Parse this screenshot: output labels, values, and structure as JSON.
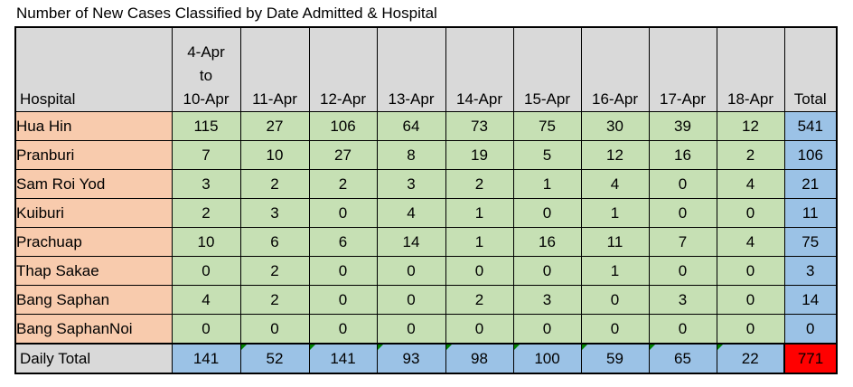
{
  "title": "Number of New Cases Classified by Date Admitted & Hospital",
  "columns": {
    "hospital": "Hospital",
    "dates": [
      {
        "l1": "4-Apr",
        "l2": "to",
        "l3": "10-Apr"
      },
      {
        "l1": "",
        "l2": "",
        "l3": "11-Apr"
      },
      {
        "l1": "",
        "l2": "",
        "l3": "12-Apr"
      },
      {
        "l1": "",
        "l2": "",
        "l3": "13-Apr"
      },
      {
        "l1": "",
        "l2": "",
        "l3": "14-Apr"
      },
      {
        "l1": "",
        "l2": "",
        "l3": "15-Apr"
      },
      {
        "l1": "",
        "l2": "",
        "l3": "16-Apr"
      },
      {
        "l1": "",
        "l2": "",
        "l3": "17-Apr"
      },
      {
        "l1": "",
        "l2": "",
        "l3": "18-Apr"
      }
    ],
    "total": "Total"
  },
  "rows": [
    {
      "hospital": "Hua Hin",
      "values": [
        "115",
        "27",
        "106",
        "64",
        "73",
        "75",
        "30",
        "39",
        "12"
      ],
      "total": "541"
    },
    {
      "hospital": "Pranburi",
      "values": [
        "7",
        "10",
        "27",
        "8",
        "19",
        "5",
        "12",
        "16",
        "2"
      ],
      "total": "106"
    },
    {
      "hospital": "Sam Roi Yod",
      "values": [
        "3",
        "2",
        "2",
        "3",
        "2",
        "1",
        "4",
        "0",
        "4"
      ],
      "total": "21"
    },
    {
      "hospital": "Kuiburi",
      "values": [
        "2",
        "3",
        "0",
        "4",
        "1",
        "0",
        "1",
        "0",
        "0"
      ],
      "total": "11"
    },
    {
      "hospital": "Prachuap",
      "values": [
        "10",
        "6",
        "6",
        "14",
        "1",
        "16",
        "11",
        "7",
        "4"
      ],
      "total": "75"
    },
    {
      "hospital": "Thap Sakae",
      "values": [
        "0",
        "2",
        "0",
        "0",
        "0",
        "0",
        "1",
        "0",
        "0"
      ],
      "total": "3"
    },
    {
      "hospital": "Bang Saphan",
      "values": [
        "4",
        "2",
        "0",
        "0",
        "2",
        "3",
        "0",
        "3",
        "0"
      ],
      "total": "14"
    },
    {
      "hospital": "Bang SaphanNoi",
      "values": [
        "0",
        "0",
        "0",
        "0",
        "0",
        "0",
        "0",
        "0",
        "0"
      ],
      "total": "0"
    }
  ],
  "footer": {
    "label": "Daily Total",
    "values": [
      "141",
      "52",
      "141",
      "93",
      "98",
      "100",
      "59",
      "65",
      "22"
    ],
    "grand_total": "771"
  },
  "colors": {
    "header_bg": "#d9d9d9",
    "hospital_bg": "#f8cbad",
    "value_bg": "#c6e0b4",
    "total_bg": "#9bc2e6",
    "grand_total_bg": "#ff0000",
    "error_marker": "#008000"
  }
}
